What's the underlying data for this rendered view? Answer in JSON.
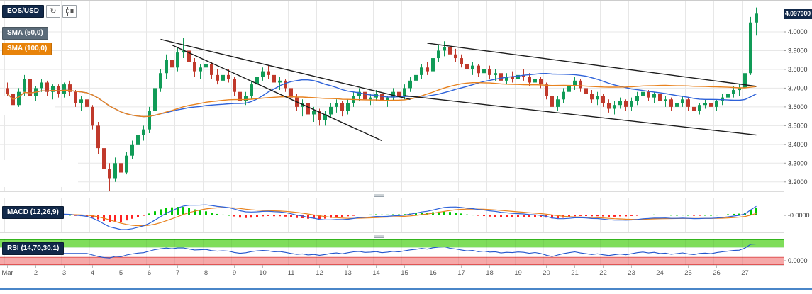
{
  "toolbar": {
    "symbol": "EOS/USD",
    "refresh_icon": "↻"
  },
  "indicators": {
    "sma50": "SMA (50,0)",
    "sma100": "SMA (100,0)",
    "macd": "MACD (12,26,9)",
    "rsi": "RSI (14,70,30,1)"
  },
  "price_badge": "4.097000",
  "colors": {
    "up": "#119b57",
    "down": "#c0392b",
    "sma_fast": "#2e62d9",
    "sma_slow": "#e8821e",
    "macd_line": "#2e62d9",
    "macd_signal": "#e8821e",
    "hist_up": "#00c800",
    "hist_down": "#ff2222",
    "rsi_line": "#2255cc",
    "band_green": "#7fdd5a",
    "band_green_edge": "#34b51e",
    "band_red": "#f6a9a9",
    "band_red_edge": "#e05555",
    "trendline": "#1b1b1b",
    "grid": "#e7e7e7",
    "axis_line": "#cccccc",
    "axis_text": "#333333",
    "date_text": "#555555",
    "scrollbar": "#4a86c8"
  },
  "chart_data": {
    "type": "candlestick",
    "symbol": "EOS/USD",
    "title": "EOS/USD with SMA(50), SMA(100), MACD(12,26,9), RSI(14,70,30,1)",
    "last_price": 4.097,
    "ylim": [
      3.15,
      4.17
    ],
    "y_tick_prices": [
      4.0,
      3.9,
      3.8,
      3.7,
      3.6,
      3.5,
      3.4,
      3.3,
      3.2
    ],
    "y_tick_labels": [
      "4.0000",
      "3.9000",
      "3.8000",
      "3.7000",
      "3.6000",
      "3.5000",
      "3.4000",
      "3.3000",
      "3.2000"
    ],
    "macd_axis_label": "-0.0000",
    "rsi_axis_label": "0.0000",
    "x_labels": [
      "Mar",
      "2",
      "3",
      "4",
      "5",
      "6",
      "7",
      "8",
      "9",
      "10",
      "11",
      "12",
      "13",
      "14",
      "15",
      "16",
      "17",
      "18",
      "19",
      "20",
      "21",
      "22",
      "23",
      "24",
      "25",
      "26",
      "27"
    ],
    "candles_per_day": 5,
    "sma_periods": [
      50,
      100
    ],
    "sma_render_periods": [
      28,
      56
    ],
    "macd_params": [
      12,
      26,
      9
    ],
    "rsi_params": [
      14,
      70,
      30,
      1
    ],
    "candles": [
      [
        3.7,
        3.73,
        3.66,
        3.67
      ],
      [
        3.67,
        3.69,
        3.59,
        3.61
      ],
      [
        3.61,
        3.7,
        3.6,
        3.68
      ],
      [
        3.68,
        3.77,
        3.66,
        3.75
      ],
      [
        3.75,
        3.76,
        3.64,
        3.66
      ],
      [
        3.66,
        3.71,
        3.63,
        3.7
      ],
      [
        3.7,
        3.75,
        3.68,
        3.73
      ],
      [
        3.73,
        3.74,
        3.66,
        3.68
      ],
      [
        3.68,
        3.72,
        3.64,
        3.71
      ],
      [
        3.71,
        3.72,
        3.65,
        3.67
      ],
      [
        3.67,
        3.73,
        3.65,
        3.72
      ],
      [
        3.72,
        3.74,
        3.66,
        3.68
      ],
      [
        3.68,
        3.69,
        3.6,
        3.62
      ],
      [
        3.62,
        3.66,
        3.58,
        3.64
      ],
      [
        3.64,
        3.65,
        3.57,
        3.6
      ],
      [
        3.6,
        3.61,
        3.48,
        3.5
      ],
      [
        3.5,
        3.52,
        3.35,
        3.38
      ],
      [
        3.38,
        3.42,
        3.24,
        3.27
      ],
      [
        3.27,
        3.3,
        3.15,
        3.22
      ],
      [
        3.22,
        3.33,
        3.2,
        3.3
      ],
      [
        3.3,
        3.34,
        3.22,
        3.25
      ],
      [
        3.25,
        3.36,
        3.24,
        3.34
      ],
      [
        3.34,
        3.42,
        3.32,
        3.4
      ],
      [
        3.4,
        3.47,
        3.38,
        3.45
      ],
      [
        3.45,
        3.5,
        3.42,
        3.48
      ],
      [
        3.48,
        3.6,
        3.46,
        3.58
      ],
      [
        3.58,
        3.72,
        3.56,
        3.7
      ],
      [
        3.7,
        3.8,
        3.68,
        3.78
      ],
      [
        3.78,
        3.88,
        3.75,
        3.85
      ],
      [
        3.85,
        3.9,
        3.78,
        3.81
      ],
      [
        3.81,
        3.92,
        3.79,
        3.89
      ],
      [
        3.89,
        3.97,
        3.86,
        3.9
      ],
      [
        3.9,
        3.93,
        3.82,
        3.84
      ],
      [
        3.84,
        3.86,
        3.76,
        3.79
      ],
      [
        3.79,
        3.83,
        3.75,
        3.81
      ],
      [
        3.81,
        3.85,
        3.77,
        3.83
      ],
      [
        3.83,
        3.84,
        3.75,
        3.77
      ],
      [
        3.77,
        3.8,
        3.72,
        3.74
      ],
      [
        3.74,
        3.79,
        3.72,
        3.77
      ],
      [
        3.77,
        3.8,
        3.73,
        3.75
      ],
      [
        3.75,
        3.76,
        3.66,
        3.68
      ],
      [
        3.68,
        3.7,
        3.6,
        3.63
      ],
      [
        3.63,
        3.68,
        3.61,
        3.66
      ],
      [
        3.66,
        3.74,
        3.64,
        3.72
      ],
      [
        3.72,
        3.78,
        3.7,
        3.76
      ],
      [
        3.76,
        3.81,
        3.74,
        3.79
      ],
      [
        3.79,
        3.82,
        3.75,
        3.77
      ],
      [
        3.77,
        3.79,
        3.71,
        3.73
      ],
      [
        3.73,
        3.76,
        3.69,
        3.74
      ],
      [
        3.74,
        3.75,
        3.68,
        3.7
      ],
      [
        3.7,
        3.72,
        3.63,
        3.65
      ],
      [
        3.65,
        3.67,
        3.58,
        3.6
      ],
      [
        3.6,
        3.64,
        3.55,
        3.62
      ],
      [
        3.62,
        3.63,
        3.54,
        3.56
      ],
      [
        3.56,
        3.6,
        3.52,
        3.58
      ],
      [
        3.58,
        3.59,
        3.5,
        3.53
      ],
      [
        3.53,
        3.58,
        3.5,
        3.56
      ],
      [
        3.56,
        3.62,
        3.54,
        3.6
      ],
      [
        3.6,
        3.64,
        3.57,
        3.62
      ],
      [
        3.62,
        3.63,
        3.55,
        3.58
      ],
      [
        3.58,
        3.64,
        3.56,
        3.62
      ],
      [
        3.62,
        3.68,
        3.6,
        3.66
      ],
      [
        3.66,
        3.7,
        3.63,
        3.68
      ],
      [
        3.68,
        3.69,
        3.62,
        3.64
      ],
      [
        3.64,
        3.67,
        3.61,
        3.65
      ],
      [
        3.65,
        3.69,
        3.63,
        3.67
      ],
      [
        3.67,
        3.68,
        3.61,
        3.63
      ],
      [
        3.63,
        3.66,
        3.6,
        3.65
      ],
      [
        3.65,
        3.7,
        3.63,
        3.68
      ],
      [
        3.68,
        3.7,
        3.64,
        3.66
      ],
      [
        3.66,
        3.72,
        3.64,
        3.7
      ],
      [
        3.7,
        3.76,
        3.68,
        3.74
      ],
      [
        3.74,
        3.79,
        3.72,
        3.77
      ],
      [
        3.77,
        3.83,
        3.75,
        3.81
      ],
      [
        3.81,
        3.84,
        3.77,
        3.79
      ],
      [
        3.79,
        3.88,
        3.78,
        3.86
      ],
      [
        3.86,
        3.93,
        3.84,
        3.9
      ],
      [
        3.9,
        3.95,
        3.87,
        3.92
      ],
      [
        3.92,
        3.94,
        3.86,
        3.88
      ],
      [
        3.88,
        3.91,
        3.84,
        3.86
      ],
      [
        3.86,
        3.88,
        3.81,
        3.83
      ],
      [
        3.83,
        3.85,
        3.78,
        3.8
      ],
      [
        3.8,
        3.84,
        3.77,
        3.82
      ],
      [
        3.82,
        3.83,
        3.76,
        3.78
      ],
      [
        3.78,
        3.82,
        3.75,
        3.8
      ],
      [
        3.8,
        3.82,
        3.75,
        3.77
      ],
      [
        3.77,
        3.8,
        3.74,
        3.78
      ],
      [
        3.78,
        3.79,
        3.72,
        3.74
      ],
      [
        3.74,
        3.78,
        3.72,
        3.76
      ],
      [
        3.76,
        3.79,
        3.73,
        3.75
      ],
      [
        3.75,
        3.79,
        3.73,
        3.77
      ],
      [
        3.77,
        3.8,
        3.74,
        3.76
      ],
      [
        3.76,
        3.78,
        3.71,
        3.73
      ],
      [
        3.73,
        3.77,
        3.71,
        3.75
      ],
      [
        3.75,
        3.76,
        3.7,
        3.72
      ],
      [
        3.72,
        3.73,
        3.64,
        3.66
      ],
      [
        3.66,
        3.68,
        3.55,
        3.6
      ],
      [
        3.6,
        3.66,
        3.58,
        3.64
      ],
      [
        3.64,
        3.7,
        3.62,
        3.68
      ],
      [
        3.68,
        3.73,
        3.66,
        3.71
      ],
      [
        3.71,
        3.76,
        3.69,
        3.74
      ],
      [
        3.74,
        3.75,
        3.68,
        3.7
      ],
      [
        3.7,
        3.72,
        3.65,
        3.67
      ],
      [
        3.67,
        3.69,
        3.62,
        3.64
      ],
      [
        3.64,
        3.68,
        3.61,
        3.66
      ],
      [
        3.66,
        3.67,
        3.6,
        3.62
      ],
      [
        3.62,
        3.64,
        3.57,
        3.59
      ],
      [
        3.59,
        3.63,
        3.56,
        3.61
      ],
      [
        3.61,
        3.65,
        3.59,
        3.63
      ],
      [
        3.63,
        3.64,
        3.58,
        3.6
      ],
      [
        3.6,
        3.65,
        3.58,
        3.63
      ],
      [
        3.63,
        3.68,
        3.61,
        3.66
      ],
      [
        3.66,
        3.7,
        3.64,
        3.68
      ],
      [
        3.68,
        3.69,
        3.63,
        3.65
      ],
      [
        3.65,
        3.68,
        3.62,
        3.67
      ],
      [
        3.67,
        3.68,
        3.61,
        3.63
      ],
      [
        3.63,
        3.66,
        3.6,
        3.64
      ],
      [
        3.64,
        3.65,
        3.58,
        3.6
      ],
      [
        3.6,
        3.64,
        3.58,
        3.62
      ],
      [
        3.62,
        3.66,
        3.6,
        3.64
      ],
      [
        3.64,
        3.65,
        3.58,
        3.6
      ],
      [
        3.6,
        3.62,
        3.56,
        3.58
      ],
      [
        3.58,
        3.62,
        3.56,
        3.61
      ],
      [
        3.61,
        3.64,
        3.59,
        3.62
      ],
      [
        3.62,
        3.63,
        3.58,
        3.6
      ],
      [
        3.6,
        3.64,
        3.58,
        3.63
      ],
      [
        3.63,
        3.67,
        3.61,
        3.65
      ],
      [
        3.65,
        3.69,
        3.63,
        3.67
      ],
      [
        3.67,
        3.71,
        3.65,
        3.69
      ],
      [
        3.69,
        3.72,
        3.66,
        3.7
      ],
      [
        3.7,
        3.8,
        3.69,
        3.78
      ],
      [
        3.78,
        4.08,
        3.77,
        4.05
      ],
      [
        4.05,
        4.13,
        3.98,
        4.097
      ]
    ],
    "trendlines": [
      {
        "i1": 27,
        "p1": 3.96,
        "i2": 71,
        "p2": 3.64
      },
      {
        "i1": 29,
        "p1": 3.93,
        "i2": 66,
        "p2": 3.42
      },
      {
        "i1": 74,
        "p1": 3.94,
        "i2": 132,
        "p2": 3.71
      },
      {
        "i1": 70,
        "p1": 3.66,
        "i2": 132,
        "p2": 3.45
      }
    ],
    "blank_patches": [
      [
        0,
        136,
        78,
        27
      ],
      [
        0,
        226,
        110,
        38
      ]
    ]
  }
}
